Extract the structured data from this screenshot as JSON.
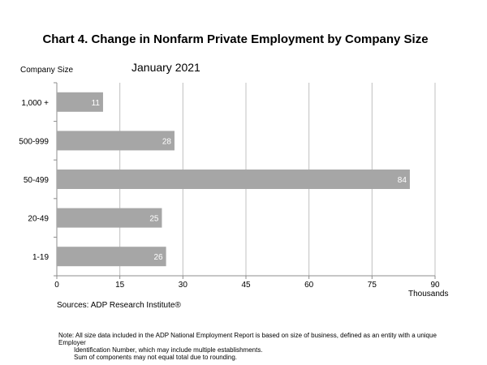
{
  "chart_data": {
    "type": "bar",
    "orientation": "horizontal",
    "title": "Chart 4. Change in Nonfarm Private Employment by Company Size",
    "subtitle": "January 2021",
    "ylabel": "Company Size",
    "xlabel": "Thousands",
    "categories": [
      "1,000 +",
      "500-999",
      "50-499",
      "20-49",
      "1-19"
    ],
    "values": [
      11,
      28,
      84,
      25,
      26
    ],
    "xlim": [
      0,
      90
    ],
    "xticks": [
      0,
      15,
      30,
      45,
      60,
      75,
      90
    ],
    "grid": true,
    "bar_color": "#a6a6a6",
    "label_color": "#ffffff",
    "source": "Sources: ADP Research Institute®",
    "notes": [
      "Note:  All size data included in the ADP National Employment Report is based on size of business, defined as an entity with a unique Employer",
      "Identification Number, which may include multiple establishments.",
      "Sum of components may not equal total due to rounding."
    ]
  }
}
